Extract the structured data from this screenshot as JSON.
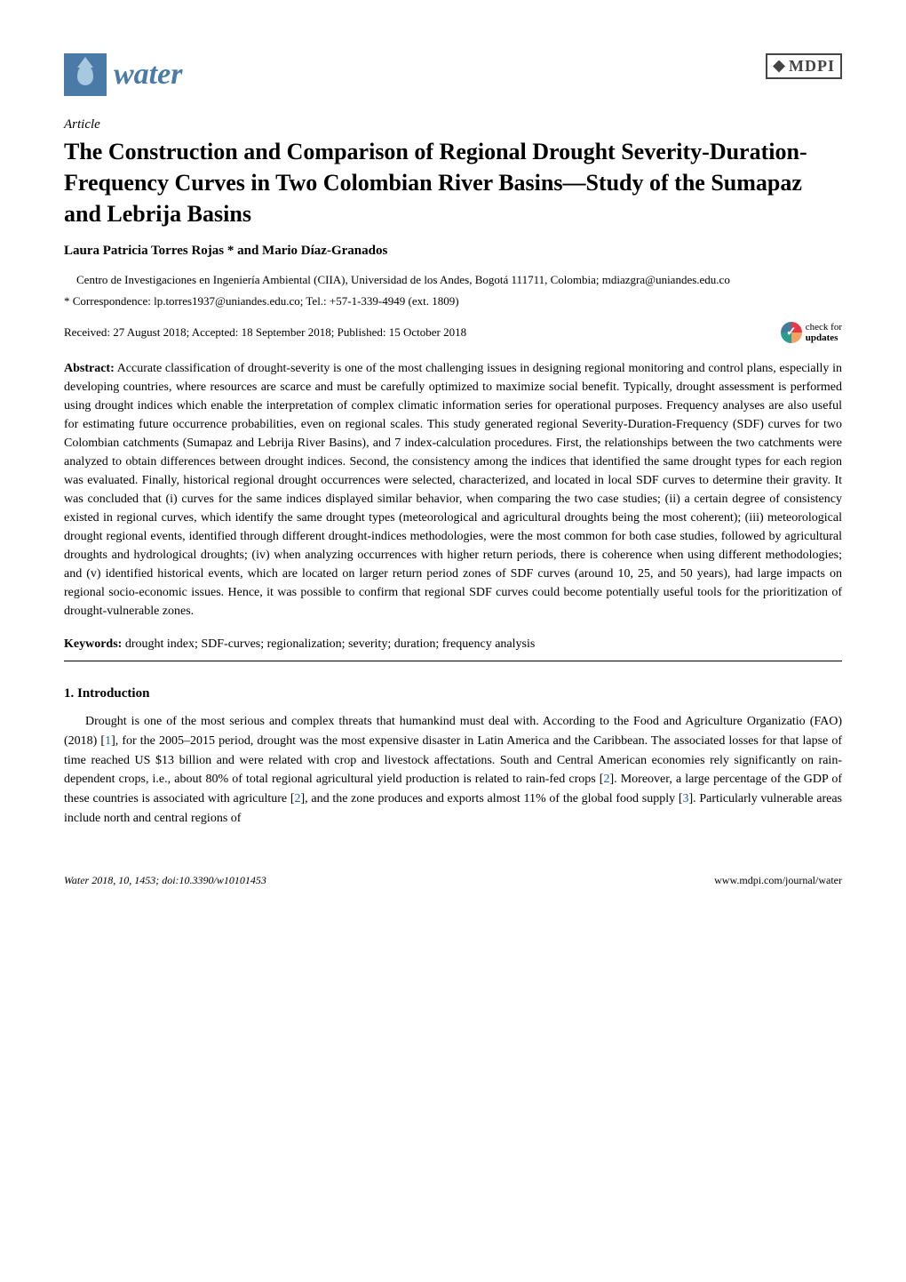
{
  "header": {
    "journal_name": "water",
    "publisher": "MDPI",
    "brand_color": "#4a7ba6"
  },
  "article": {
    "type": "Article",
    "title": "The Construction and Comparison of Regional Drought Severity-Duration-Frequency Curves in Two Colombian River Basins—Study of the Sumapaz and Lebrija Basins",
    "authors": "Laura Patricia Torres Rojas * and Mario Díaz-Granados",
    "affiliation": "Centro de Investigaciones en Ingeniería Ambiental (CIIA), Universidad de los Andes, Bogotá 111711, Colombia; mdiazgra@uniandes.edu.co",
    "correspondence": "* Correspondence: lp.torres1937@uniandes.edu.co; Tel.: +57-1-339-4949 (ext. 1809)",
    "dates": "Received: 27 August 2018; Accepted: 18 September 2018; Published: 15 October 2018",
    "check_updates_label": "check for",
    "check_updates_label2": "updates"
  },
  "abstract": {
    "label": "Abstract:",
    "text": " Accurate classification of drought-severity is one of the most challenging issues in designing regional monitoring and control plans, especially in developing countries, where resources are scarce and must be carefully optimized to maximize social benefit. Typically, drought assessment is performed using drought indices which enable the interpretation of complex climatic information series for operational purposes. Frequency analyses are also useful for estimating future occurrence probabilities, even on regional scales. This study generated regional Severity-Duration-Frequency (SDF) curves for two Colombian catchments (Sumapaz and Lebrija River Basins), and 7 index-calculation procedures. First, the relationships between the two catchments were analyzed to obtain differences between drought indices. Second, the consistency among the indices that identified the same drought types for each region was evaluated. Finally, historical regional drought occurrences were selected, characterized, and located in local SDF curves to determine their gravity. It was concluded that (i) curves for the same indices displayed similar behavior, when comparing the two case studies; (ii) a certain degree of consistency existed in regional curves, which identify the same drought types (meteorological and agricultural droughts being the most coherent); (iii) meteorological drought regional events, identified through different drought-indices methodologies, were the most common for both case studies, followed by agricultural droughts and hydrological droughts; (iv) when analyzing occurrences with higher return periods, there is coherence when using different methodologies; and (v) identified historical events, which are located on larger return period zones of SDF curves (around 10, 25, and 50 years), had large impacts on regional socio-economic issues. Hence, it was possible to confirm that regional SDF curves could become potentially useful tools for the prioritization of drought-vulnerable zones."
  },
  "keywords": {
    "label": "Keywords:",
    "text": " drought index; SDF-curves; regionalization; severity; duration; frequency analysis"
  },
  "section": {
    "heading": "1. Introduction",
    "body_part1": "Drought is one of the most serious and complex threats that humankind must deal with. According to the Food and Agriculture Organizatio (FAO) (2018) [",
    "ref1": "1",
    "body_part2": "], for the 2005–2015 period, drought was the most expensive disaster in Latin America and the Caribbean. The associated losses for that lapse of time reached US $13 billion and were related with crop and livestock affectations. South and Central American economies rely significantly on rain-dependent crops, i.e., about 80% of total regional agricultural yield production is related to rain-fed crops [",
    "ref2": "2",
    "body_part3": "]. Moreover, a large percentage of the GDP of these countries is associated with agriculture [",
    "ref3": "2",
    "body_part4": "], and the zone produces and exports almost 11% of the global food supply [",
    "ref4": "3",
    "body_part5": "]. Particularly vulnerable areas include north and central regions of"
  },
  "footer": {
    "left": "Water 2018, 10, 1453; doi:10.3390/w10101453",
    "right": "www.mdpi.com/journal/water"
  }
}
